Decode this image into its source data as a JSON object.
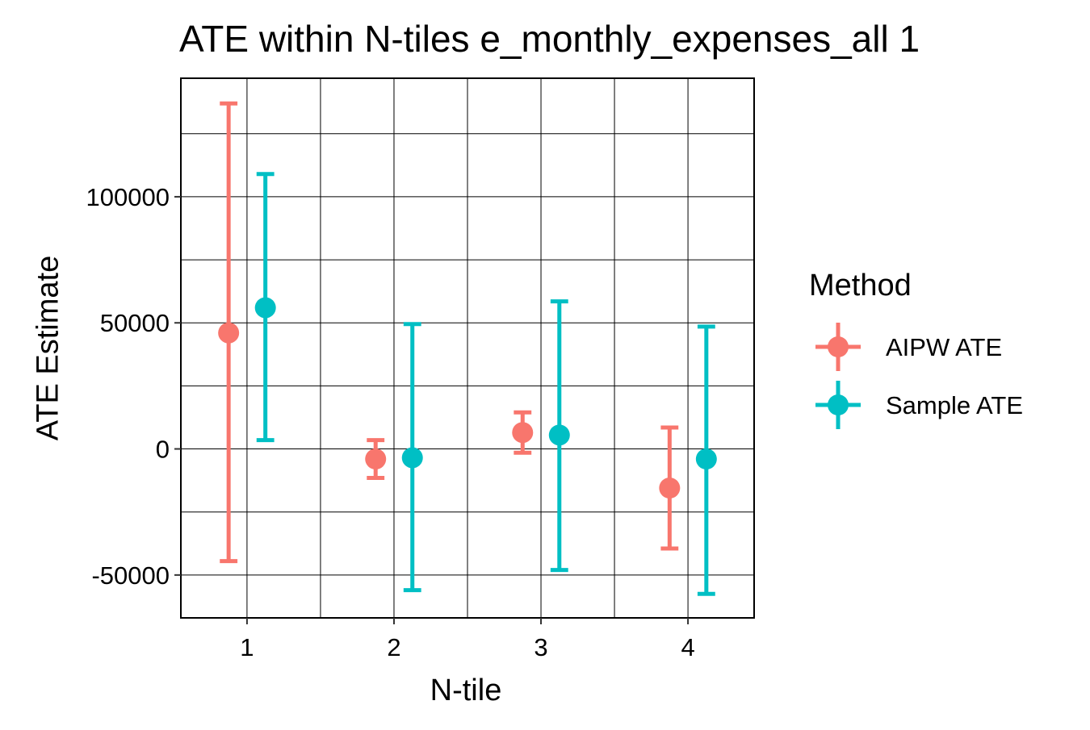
{
  "chart_data": {
    "type": "scatter",
    "title": "ATE within N-tiles e_monthly_expenses_all 1",
    "xlabel": "N-tile",
    "ylabel": "ATE Estimate",
    "categories": [
      "1",
      "2",
      "3",
      "4"
    ],
    "xlim": [
      0.55,
      4.45
    ],
    "ylim": [
      -67000,
      147000
    ],
    "yticks": [
      -50000,
      0,
      50000,
      100000
    ],
    "ytick_labels": [
      "-50000",
      "0",
      "50000",
      "100000"
    ],
    "grid": true,
    "legend": {
      "title": "Method",
      "position": "right"
    },
    "colors": {
      "AIPW ATE": "#F8766D",
      "Sample ATE": "#00BFC4"
    },
    "series": [
      {
        "name": "AIPW ATE",
        "color": "#F8766D",
        "points": [
          {
            "x": 1,
            "y": 46000,
            "lower": -44500,
            "upper": 137000
          },
          {
            "x": 2,
            "y": -4000,
            "lower": -11500,
            "upper": 3500
          },
          {
            "x": 3,
            "y": 6500,
            "lower": -1500,
            "upper": 14500
          },
          {
            "x": 4,
            "y": -15500,
            "lower": -39500,
            "upper": 8500
          }
        ]
      },
      {
        "name": "Sample ATE",
        "color": "#00BFC4",
        "points": [
          {
            "x": 1,
            "y": 56000,
            "lower": 3500,
            "upper": 109000
          },
          {
            "x": 2,
            "y": -3500,
            "lower": -56000,
            "upper": 49500
          },
          {
            "x": 3,
            "y": 5500,
            "lower": -48000,
            "upper": 58500
          },
          {
            "x": 4,
            "y": -4000,
            "lower": -57500,
            "upper": 48500
          }
        ]
      }
    ]
  }
}
